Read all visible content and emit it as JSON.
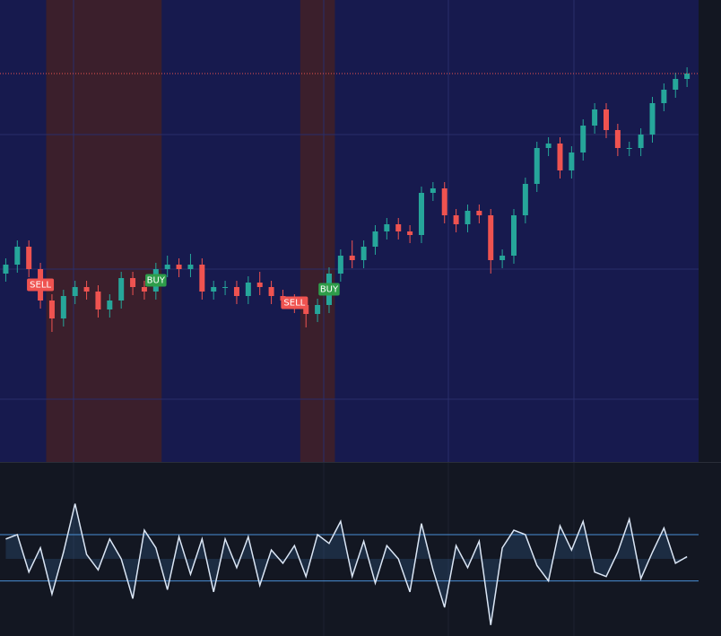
{
  "chart_data": {
    "type": "candlestick",
    "ylim": [
      0,
      515
    ],
    "up_color": "#26a69a",
    "down_color": "#ef5350",
    "open": [
      210,
      220,
      240,
      215,
      180,
      160,
      185,
      195,
      190,
      170,
      180,
      205,
      195,
      190,
      215,
      220,
      215,
      220,
      190,
      195,
      195,
      185,
      200,
      195,
      185,
      180,
      175,
      165,
      175,
      210,
      230,
      225,
      240,
      257,
      265,
      257,
      253,
      300,
      305,
      275,
      265,
      280,
      275,
      225,
      230,
      275,
      310,
      350,
      355,
      325,
      345,
      375,
      393,
      370,
      350,
      350,
      365,
      400,
      415,
      427
    ],
    "high": [
      227,
      247,
      247,
      222,
      187,
      192,
      202,
      202,
      197,
      187,
      212,
      212,
      202,
      222,
      230,
      227,
      232,
      227,
      202,
      202,
      202,
      207,
      212,
      202,
      192,
      187,
      182,
      182,
      217,
      237,
      247,
      247,
      264,
      272,
      272,
      264,
      307,
      312,
      312,
      282,
      287,
      287,
      282,
      237,
      282,
      317,
      357,
      362,
      362,
      352,
      382,
      400,
      400,
      377,
      357,
      372,
      407,
      422,
      434,
      440
    ],
    "low": [
      201,
      211,
      206,
      171,
      145,
      151,
      176,
      181,
      161,
      161,
      171,
      186,
      181,
      181,
      206,
      206,
      206,
      181,
      181,
      186,
      176,
      176,
      186,
      176,
      171,
      166,
      150,
      156,
      166,
      201,
      216,
      216,
      231,
      248,
      248,
      244,
      244,
      291,
      266,
      256,
      256,
      266,
      210,
      216,
      221,
      266,
      301,
      341,
      316,
      316,
      336,
      366,
      361,
      341,
      341,
      341,
      356,
      391,
      406,
      418
    ],
    "close": [
      220,
      240,
      215,
      180,
      160,
      185,
      195,
      190,
      170,
      180,
      205,
      195,
      190,
      215,
      220,
      215,
      220,
      190,
      195,
      195,
      185,
      200,
      195,
      185,
      180,
      175,
      165,
      175,
      210,
      230,
      225,
      240,
      257,
      265,
      257,
      253,
      300,
      305,
      275,
      265,
      280,
      275,
      225,
      230,
      275,
      310,
      350,
      355,
      325,
      345,
      375,
      393,
      370,
      350,
      350,
      365,
      400,
      415,
      427,
      433
    ],
    "regions": [
      {
        "start": 4,
        "end": 13,
        "color": "#3b1f2c"
      },
      {
        "start": 26,
        "end": 28,
        "color": "#3b1f2c"
      }
    ],
    "markers": [
      {
        "index": 3,
        "label": "SELL",
        "color": "#ef5350"
      },
      {
        "index": 13,
        "label": "BUY",
        "color": "#2e9d4a"
      },
      {
        "index": 25,
        "label": "SELL",
        "color": "#ef5350"
      },
      {
        "index": 28,
        "label": "BUY",
        "color": "#2e9d4a"
      }
    ],
    "oscillator": {
      "type": "line",
      "color": "#dbe6f5",
      "band_color": "#4a8fd6",
      "ylim": [
        -3.5,
        3.5
      ],
      "upper": 1.1,
      "lower": -1.0,
      "values": [
        0.9,
        1.1,
        -0.6,
        0.5,
        -1.6,
        0.3,
        2.5,
        0.2,
        -0.5,
        0.9,
        0.0,
        -1.8,
        1.3,
        0.5,
        -1.4,
        1.0,
        -0.7,
        0.9,
        -1.5,
        0.9,
        -0.4,
        1.0,
        -1.2,
        0.4,
        -0.2,
        0.6,
        -0.8,
        1.1,
        0.7,
        1.7,
        -0.8,
        0.8,
        -1.1,
        0.6,
        0.0,
        -1.5,
        1.6,
        -0.5,
        -2.2,
        0.6,
        -0.4,
        0.8,
        -3.0,
        0.5,
        1.3,
        1.1,
        -0.3,
        -1.0,
        1.5,
        0.4,
        1.7,
        -0.6,
        -0.8,
        0.3,
        1.8,
        -0.9,
        0.3,
        1.4,
        -0.2,
        0.1
      ]
    }
  }
}
